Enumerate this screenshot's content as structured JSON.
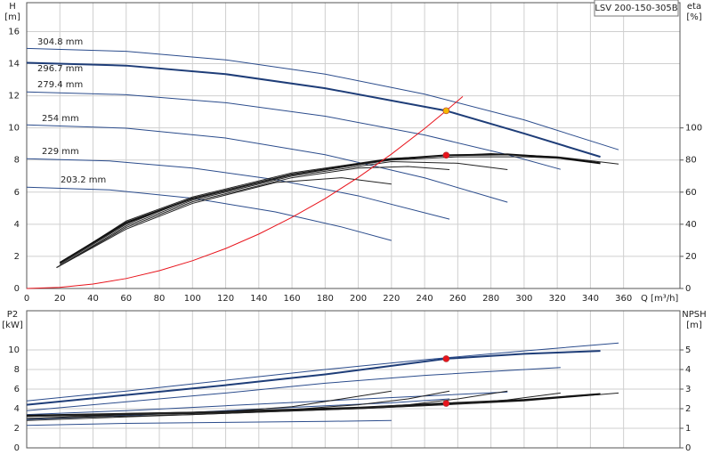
{
  "chart_data": [
    {
      "type": "line",
      "model": "LSV 200-150-305B",
      "ylabel": [
        "H",
        "[m]"
      ],
      "y2label": [
        "eta",
        "[%]"
      ],
      "xlabel": "Q [m³/h]",
      "xlim": [
        0,
        394
      ],
      "xticks": [
        0,
        20,
        40,
        60,
        80,
        100,
        120,
        140,
        160,
        180,
        200,
        220,
        240,
        260,
        280,
        300,
        320,
        340,
        360
      ],
      "ylim": [
        0,
        17.8
      ],
      "yticks": [
        0,
        2,
        4,
        6,
        8,
        10,
        12,
        14,
        16
      ],
      "y2lim": [
        0,
        178
      ],
      "y2ticks": [
        0,
        20,
        40,
        60,
        80,
        100
      ],
      "grid": true,
      "series": [
        {
          "name": "304.8 mm",
          "color": "#2b4c8c",
          "x": [
            0,
            60,
            120,
            180,
            240,
            300,
            357
          ],
          "values": [
            14.95,
            14.77,
            14.24,
            13.35,
            12.1,
            10.5,
            8.64
          ]
        },
        {
          "name": "296.7 mm",
          "color": "#1e3d78",
          "line_width": 2,
          "x": [
            0,
            60,
            120,
            180,
            253,
            300,
            346
          ],
          "values": [
            14.06,
            13.88,
            13.35,
            12.47,
            11.07,
            9.65,
            8.2
          ]
        },
        {
          "name": "279.4 mm",
          "color": "#2b4c8c",
          "x": [
            0,
            60,
            120,
            180,
            240,
            290,
            322
          ],
          "values": [
            12.24,
            12.07,
            11.57,
            10.73,
            9.56,
            8.33,
            7.42
          ]
        },
        {
          "name": "254 mm",
          "color": "#2b4c8c",
          "x": [
            0,
            60,
            120,
            180,
            240,
            290
          ],
          "values": [
            10.19,
            9.98,
            9.37,
            8.33,
            6.89,
            5.37
          ]
        },
        {
          "name": "229 mm",
          "color": "#2b4c8c",
          "x": [
            0,
            50,
            100,
            150,
            200,
            255
          ],
          "values": [
            8.08,
            7.94,
            7.5,
            6.78,
            5.77,
            4.32
          ]
        },
        {
          "name": "203.2 mm",
          "color": "#2b4c8c",
          "x": [
            0,
            50,
            100,
            150,
            190,
            220
          ],
          "values": [
            6.31,
            6.14,
            5.62,
            4.77,
            3.83,
            2.99
          ]
        },
        {
          "axis": "y2",
          "color": "#222222",
          "x": [
            22,
            60,
            100,
            160,
            220,
            280,
            320,
            357
          ],
          "values": [
            17,
            42,
            57,
            72,
            81,
            84,
            82,
            77.5
          ]
        },
        {
          "axis": "y2",
          "color": "#111111",
          "line_width": 2,
          "x": [
            20,
            60,
            100,
            160,
            220,
            253,
            290,
            320,
            346
          ],
          "values": [
            16,
            41,
            56,
            71,
            80.5,
            83,
            83.5,
            81.5,
            78
          ]
        },
        {
          "axis": "y2",
          "color": "#222222",
          "x": [
            20,
            60,
            100,
            160,
            220,
            260,
            300,
            322
          ],
          "values": [
            15,
            40,
            56,
            71,
            80,
            82,
            82,
            81
          ]
        },
        {
          "axis": "y2",
          "color": "#222222",
          "x": [
            18,
            60,
            100,
            160,
            220,
            260,
            290
          ],
          "values": [
            13,
            39,
            55,
            70,
            79,
            78,
            74
          ]
        },
        {
          "axis": "y2",
          "color": "#222222",
          "x": [
            18,
            60,
            100,
            160,
            200,
            230,
            255
          ],
          "values": [
            13,
            38,
            54,
            69,
            75,
            76,
            74
          ]
        },
        {
          "axis": "y2",
          "color": "#222222",
          "x": [
            18,
            60,
            100,
            150,
            190,
            220
          ],
          "values": [
            13,
            37,
            53,
            66,
            69,
            65
          ]
        },
        {
          "color": "#e8141c",
          "x": [
            0,
            20,
            40,
            60,
            80,
            100,
            120,
            140,
            160,
            180,
            200,
            220,
            240,
            253,
            263
          ],
          "values": [
            0,
            0.07,
            0.28,
            0.62,
            1.11,
            1.73,
            2.49,
            3.39,
            4.43,
            5.6,
            6.92,
            8.37,
            9.96,
            11.07,
            11.96
          ]
        }
      ],
      "points": [
        {
          "x": 253,
          "y": 11.07,
          "color": "#f5b800"
        },
        {
          "x": 253,
          "y": 83,
          "axis": "y2",
          "color": "#e8141c"
        }
      ]
    },
    {
      "type": "line",
      "ylabel": [
        "P2",
        "[kW]"
      ],
      "y2label": [
        "NPSH",
        "[m]"
      ],
      "xlim": [
        0,
        394
      ],
      "xticks": [
        0,
        20,
        40,
        60,
        80,
        100,
        120,
        140,
        160,
        180,
        200,
        220,
        240,
        260,
        280,
        300,
        320,
        340,
        360
      ],
      "ylim": [
        0,
        14
      ],
      "yticks": [
        0,
        2,
        4,
        6,
        8,
        10
      ],
      "y2lim": [
        0,
        7
      ],
      "y2ticks": [
        0,
        1,
        2,
        3,
        4,
        5
      ],
      "grid": true,
      "series": [
        {
          "color": "#2b4c8c",
          "x": [
            0,
            60,
            120,
            180,
            240,
            300,
            357
          ],
          "values": [
            4.8,
            5.8,
            6.9,
            8.0,
            9.0,
            9.9,
            10.7
          ]
        },
        {
          "color": "#1e3d78",
          "line_width": 2,
          "x": [
            0,
            60,
            120,
            180,
            253,
            300,
            346
          ],
          "values": [
            4.4,
            5.4,
            6.4,
            7.5,
            9.1,
            9.6,
            9.9
          ]
        },
        {
          "color": "#2b4c8c",
          "x": [
            0,
            60,
            120,
            180,
            240,
            290,
            322
          ],
          "values": [
            3.8,
            4.7,
            5.6,
            6.6,
            7.4,
            7.9,
            8.2
          ]
        },
        {
          "color": "#2b4c8c",
          "x": [
            0,
            60,
            120,
            180,
            240,
            290
          ],
          "values": [
            3.4,
            3.8,
            4.3,
            4.8,
            5.3,
            5.7
          ]
        },
        {
          "color": "#2b4c8c",
          "x": [
            0,
            60,
            120,
            180,
            220,
            255
          ],
          "values": [
            2.9,
            3.3,
            3.8,
            4.3,
            4.6,
            5.0
          ]
        },
        {
          "color": "#2b4c8c",
          "x": [
            0,
            60,
            120,
            180,
            220
          ],
          "values": [
            2.3,
            2.5,
            2.6,
            2.7,
            2.8
          ]
        },
        {
          "axis": "y2",
          "color": "#222222",
          "x": [
            0,
            100,
            200,
            253,
            300,
            357
          ],
          "values": [
            1.6,
            1.75,
            2.0,
            2.2,
            2.4,
            2.8
          ]
        },
        {
          "axis": "y2",
          "color": "#111111",
          "line_width": 2,
          "x": [
            0,
            100,
            200,
            253,
            300,
            346
          ],
          "values": [
            1.65,
            1.8,
            2.05,
            2.27,
            2.45,
            2.75
          ]
        },
        {
          "axis": "y2",
          "color": "#222222",
          "x": [
            0,
            100,
            200,
            250,
            290,
            322
          ],
          "values": [
            1.5,
            1.7,
            2.0,
            2.2,
            2.45,
            2.8
          ]
        },
        {
          "axis": "y2",
          "color": "#222222",
          "x": [
            0,
            100,
            180,
            230,
            260,
            290
          ],
          "values": [
            1.4,
            1.7,
            1.95,
            2.2,
            2.5,
            2.9
          ]
        },
        {
          "axis": "y2",
          "color": "#222222",
          "x": [
            0,
            80,
            150,
            200,
            230,
            255
          ],
          "values": [
            1.5,
            1.75,
            1.9,
            2.2,
            2.5,
            2.9
          ]
        },
        {
          "axis": "y2",
          "color": "#222222",
          "x": [
            0,
            60,
            120,
            160,
            190,
            220
          ],
          "values": [
            1.6,
            1.75,
            1.85,
            2.1,
            2.5,
            2.9
          ]
        }
      ],
      "points": [
        {
          "x": 253,
          "y": 9.1,
          "color": "#e8141c"
        },
        {
          "x": 253,
          "y": 2.27,
          "axis": "y2",
          "color": "#e8141c"
        }
      ]
    }
  ]
}
